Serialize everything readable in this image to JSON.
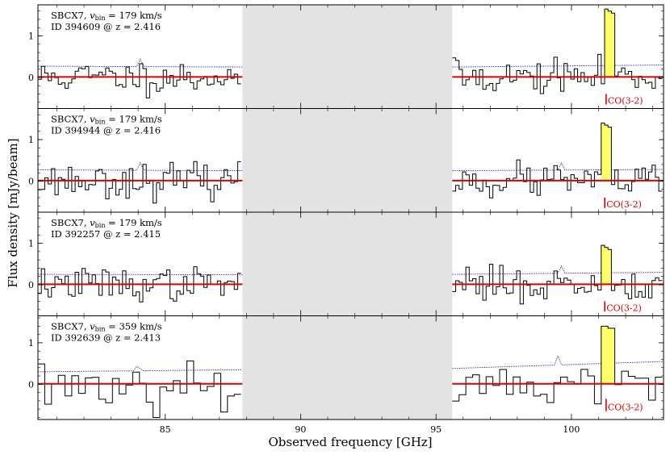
{
  "chart_data": {
    "type": "line",
    "figure": {
      "xlabel": "Observed frequency [GHz]",
      "ylabel": "Flux density [mJy/beam]",
      "xlim": [
        80.3,
        103.4
      ],
      "xticks": [
        85,
        90,
        95,
        100
      ],
      "xtick_labels": [
        "85",
        "90",
        "95",
        "100"
      ],
      "gap_range": [
        87.85,
        95.6
      ],
      "gap_color": "#e3e3e3",
      "spectrum_color": "#000000",
      "continuum_color": "#dd0000",
      "noise_color": "#3333cc",
      "line_fill_color": "#ffff66"
    },
    "panels": [
      {
        "name_label": "SBCX7, ",
        "vbin_text": "v",
        "vbin_sub": "bin",
        "vbin_value": " = 179 km/s",
        "id_label": "ID 394609 @ z = 2.416",
        "ylim": [
          -0.75,
          1.75
        ],
        "yticks": [
          0,
          1
        ],
        "ytick_labels": [
          "0",
          "1"
        ],
        "low_band": [
          80.3,
          87.85
        ],
        "high_band": [
          95.6,
          103.4
        ],
        "bin_width_ghz": 0.125,
        "continuum": 0.01,
        "noise_low": [
          0.27,
          0.25
        ],
        "noise_high": [
          0.25,
          0.3
        ],
        "noise_bumps": [
          84.1
        ],
        "line": {
          "label": "CO(3-2)",
          "freq": 101.25,
          "peak": 1.6,
          "width_bins": 2,
          "marker_top": -0.4,
          "marker_bottom": -0.65
        },
        "seed": 11
      },
      {
        "name_label": "SBCX7, ",
        "vbin_text": "v",
        "vbin_sub": "bin",
        "vbin_value": " = 179 km/s",
        "id_label": "ID 394944 @ z = 2.416",
        "ylim": [
          -0.75,
          1.75
        ],
        "yticks": [
          0,
          1
        ],
        "ytick_labels": [
          "0",
          "1"
        ],
        "low_band": [
          80.3,
          87.85
        ],
        "high_band": [
          95.6,
          103.4
        ],
        "bin_width_ghz": 0.125,
        "continuum": 0.01,
        "noise_low": [
          0.27,
          0.25
        ],
        "noise_high": [
          0.25,
          0.28
        ],
        "noise_bumps": [
          84.1,
          99.6
        ],
        "line": {
          "label": "CO(3-2)",
          "freq": 101.2,
          "peak": 1.35,
          "width_bins": 2,
          "marker_top": -0.4,
          "marker_bottom": -0.65
        },
        "seed": 23
      },
      {
        "name_label": "SBCX7, ",
        "vbin_text": "v",
        "vbin_sub": "bin",
        "vbin_value": " = 179 km/s",
        "id_label": "ID 392257 @ z = 2.415",
        "ylim": [
          -0.75,
          1.75
        ],
        "yticks": [
          0,
          1
        ],
        "ytick_labels": [
          "0",
          "1"
        ],
        "low_band": [
          80.3,
          87.85
        ],
        "high_band": [
          95.6,
          103.4
        ],
        "bin_width_ghz": 0.125,
        "continuum": 0.01,
        "noise_low": [
          0.25,
          0.24
        ],
        "noise_high": [
          0.25,
          0.3
        ],
        "noise_bumps": [
          99.6
        ],
        "line": {
          "label": "CO(3-2)",
          "freq": 101.2,
          "peak": 0.9,
          "width_bins": 2,
          "marker_top": -0.4,
          "marker_bottom": -0.65
        },
        "seed": 37
      },
      {
        "name_label": "SBCX7, ",
        "vbin_text": "v",
        "vbin_sub": "bin",
        "vbin_value": " = 359 km/s",
        "id_label": "ID 392639 @ z = 2.413",
        "ylim": [
          -0.85,
          1.65
        ],
        "yticks": [
          0,
          1
        ],
        "ytick_labels": [
          "0",
          "1"
        ],
        "low_band": [
          80.3,
          87.85
        ],
        "high_band": [
          95.6,
          103.4
        ],
        "bin_width_ghz": 0.25,
        "continuum": 0.01,
        "noise_low": [
          0.3,
          0.35
        ],
        "noise_high": [
          0.38,
          0.55
        ],
        "noise_bumps": [
          84.0,
          99.5
        ],
        "line": {
          "label": "CO(3-2)",
          "freq": 101.25,
          "peak": 1.35,
          "width_bins": 1,
          "marker_top": -0.35,
          "marker_bottom": -0.65
        },
        "seed": 53
      }
    ]
  }
}
